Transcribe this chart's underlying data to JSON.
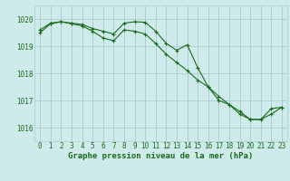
{
  "title": "Graphe pression niveau de la mer (hPa)",
  "background_color": "#ceeaea",
  "grid_color": "#aed0d0",
  "line_color": "#1a6b1a",
  "xlim": [
    -0.5,
    23.5
  ],
  "ylim": [
    1015.5,
    1020.5
  ],
  "yticks": [
    1016,
    1017,
    1018,
    1019,
    1020
  ],
  "xticks": [
    0,
    1,
    2,
    3,
    4,
    5,
    6,
    7,
    8,
    9,
    10,
    11,
    12,
    13,
    14,
    15,
    16,
    17,
    18,
    19,
    20,
    21,
    22,
    23
  ],
  "line1_x": [
    0,
    1,
    2,
    3,
    4,
    5,
    6,
    7,
    8,
    9,
    10,
    11,
    12,
    13,
    14,
    15,
    16,
    17,
    18,
    19,
    20,
    21,
    22,
    23
  ],
  "line1_y": [
    1019.6,
    1019.85,
    1019.9,
    1019.85,
    1019.8,
    1019.65,
    1019.55,
    1019.45,
    1019.85,
    1019.9,
    1019.88,
    1019.55,
    1019.1,
    1018.85,
    1019.05,
    1018.2,
    1017.5,
    1017.15,
    1016.85,
    1016.5,
    1016.3,
    1016.3,
    1016.7,
    1016.75
  ],
  "line2_x": [
    0,
    1,
    2,
    3,
    4,
    5,
    6,
    7,
    8,
    9,
    10,
    11,
    12,
    13,
    14,
    15,
    16,
    17,
    18,
    19,
    20,
    21,
    22,
    23
  ],
  "line2_y": [
    1019.5,
    1019.82,
    1019.9,
    1019.82,
    1019.75,
    1019.55,
    1019.3,
    1019.2,
    1019.6,
    1019.55,
    1019.45,
    1019.1,
    1018.7,
    1018.4,
    1018.1,
    1017.75,
    1017.5,
    1017.0,
    1016.85,
    1016.6,
    1016.3,
    1016.3,
    1016.5,
    1016.75
  ],
  "tick_fontsize": 5.5,
  "title_fontsize": 6.5
}
